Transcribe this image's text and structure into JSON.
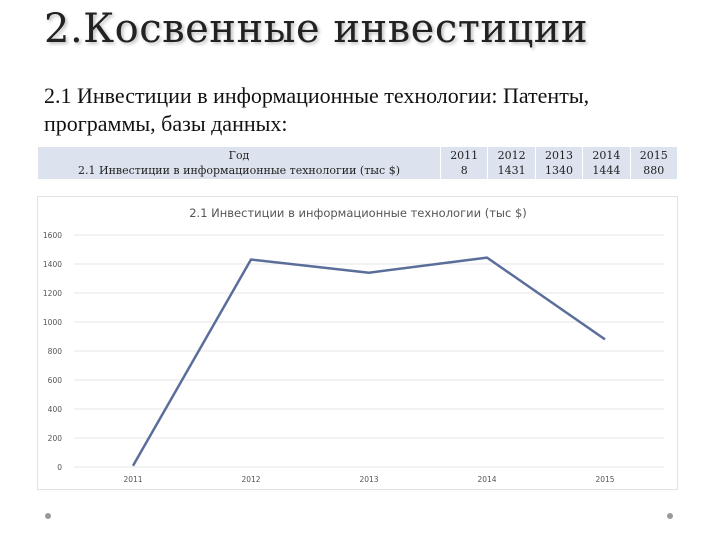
{
  "slide": {
    "title": "2.Косвенные инвестиции",
    "subtitle": "2.1 Инвестиции в информационные технологии: Патенты, программы, базы данных:"
  },
  "table": {
    "header_label": "Год",
    "row_label": "2.1 Инвестиции в информационные технологии (тыс $)",
    "years": [
      "2011",
      "2012",
      "2013",
      "2014",
      "2015"
    ],
    "values": [
      "8",
      "1431",
      "1340",
      "1444",
      "880"
    ]
  },
  "chart_data": {
    "type": "line",
    "title": "2.1 Инвестиции в информационные технологии (тыс $)",
    "categories": [
      "2011",
      "2012",
      "2013",
      "2014",
      "2015"
    ],
    "series": [
      {
        "values": [
          8,
          1431,
          1340,
          1444,
          880
        ],
        "color": "#5b6e9a"
      }
    ],
    "ylim": [
      0,
      1600
    ],
    "yticks": [
      0,
      200,
      400,
      600,
      800,
      1000,
      1200,
      1400,
      1600
    ],
    "grid": true,
    "legend": "none"
  }
}
